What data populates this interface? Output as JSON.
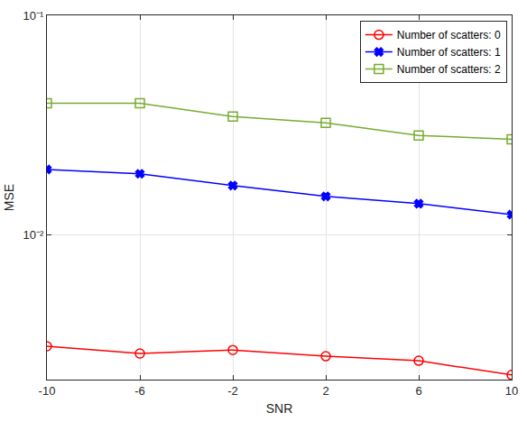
{
  "chart_data": {
    "type": "line",
    "x_label": "SNR",
    "y_label": "MSE",
    "x": [
      -10,
      -6,
      -2,
      2,
      6,
      10
    ],
    "series": [
      {
        "name": "Number of scatters: 0",
        "color": "#ff0000",
        "marker": "circle-open",
        "line_style": "solid",
        "values": [
          0.00312,
          0.00289,
          0.003,
          0.00281,
          0.00268,
          0.00231
        ]
      },
      {
        "name": "Number of scatters: 1",
        "color": "#0000ff",
        "marker": "x",
        "line_style": "solid",
        "values": [
          0.0199,
          0.019,
          0.0168,
          0.015,
          0.0139,
          0.0124
        ]
      },
      {
        "name": "Number of scatters: 2",
        "color": "#77ac30",
        "marker": "square-open",
        "line_style": "solid",
        "values": [
          0.0398,
          0.0398,
          0.0346,
          0.0324,
          0.0284,
          0.0273
        ]
      }
    ],
    "xlim": [
      -10,
      10
    ],
    "xticks": [
      -10,
      -6,
      -2,
      2,
      6,
      10
    ],
    "ylim": [
      0.0022,
      0.1
    ],
    "yticks": [
      {
        "value": 0.01,
        "label": "10⁻²"
      },
      {
        "value": 0.1,
        "label": "10⁻¹"
      }
    ],
    "log": "y",
    "grid": true,
    "legend": "upper right"
  }
}
